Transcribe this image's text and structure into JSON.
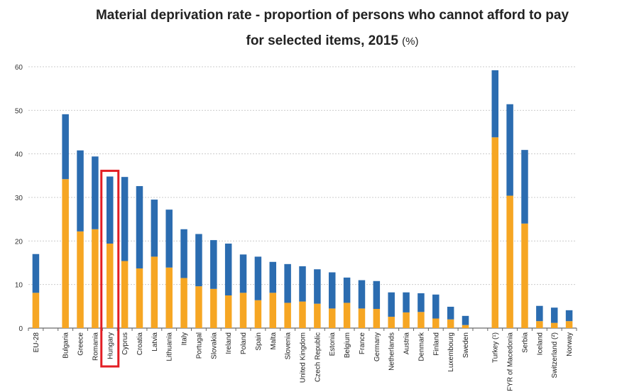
{
  "chart_data": {
    "type": "bar",
    "stacked": true,
    "title_line1": "Material deprivation rate - proportion of persons who cannot afford to pay",
    "title_line2": "for selected items, 2015",
    "title_unit": "(%)",
    "ylim": [
      0,
      60
    ],
    "yticks": [
      "0",
      "10",
      "20",
      "30",
      "40",
      "50",
      "60"
    ],
    "grid": true,
    "highlight": "Hungary",
    "colors": {
      "lower": "#f6a623",
      "upper": "#2b6cb0",
      "highlight_box": "#e31e24",
      "grid": "#cccccc"
    },
    "categories": [
      "EU-28",
      "",
      "Bulgaria",
      "Greece",
      "Romania",
      "Hungary",
      "Cyprus",
      "Croatia",
      "Latvia",
      "Lithuania",
      "Italy",
      "Portugal",
      "Slovakia",
      "Ireland",
      "Poland",
      "Spain",
      "Malta",
      "Slovenia",
      "United Kingdom",
      "Czech Republic",
      "Estonia",
      "Belgium",
      "France",
      "Germany",
      "Netherlands",
      "Austria",
      "Denmark",
      "Finland",
      "Luxembourg",
      "Sweden",
      "",
      "Turkey (¹)",
      "FYR of Macedonia",
      "Serbia",
      "Iceland",
      "Switzerland (²)",
      "Norway"
    ],
    "series": [
      {
        "values": [
          8.1,
          null,
          34.2,
          22.2,
          22.7,
          19.4,
          15.4,
          13.7,
          16.4,
          13.9,
          11.5,
          9.6,
          9.0,
          7.5,
          8.1,
          6.4,
          8.1,
          5.8,
          6.1,
          5.6,
          4.5,
          5.8,
          4.5,
          4.4,
          2.6,
          3.6,
          3.7,
          2.2,
          2.0,
          0.7,
          null,
          43.8,
          30.4,
          24.0,
          1.6,
          1.2,
          1.6
        ]
      },
      {
        "values": [
          8.9,
          null,
          14.9,
          18.6,
          16.7,
          15.4,
          19.3,
          18.9,
          13.1,
          13.3,
          11.2,
          12.0,
          11.2,
          11.9,
          8.8,
          10.0,
          7.1,
          8.9,
          8.1,
          7.9,
          8.3,
          5.8,
          6.5,
          6.4,
          5.6,
          4.6,
          4.3,
          5.5,
          2.9,
          2.1,
          null,
          15.4,
          21.0,
          16.9,
          3.5,
          3.5,
          2.5
        ]
      }
    ]
  }
}
